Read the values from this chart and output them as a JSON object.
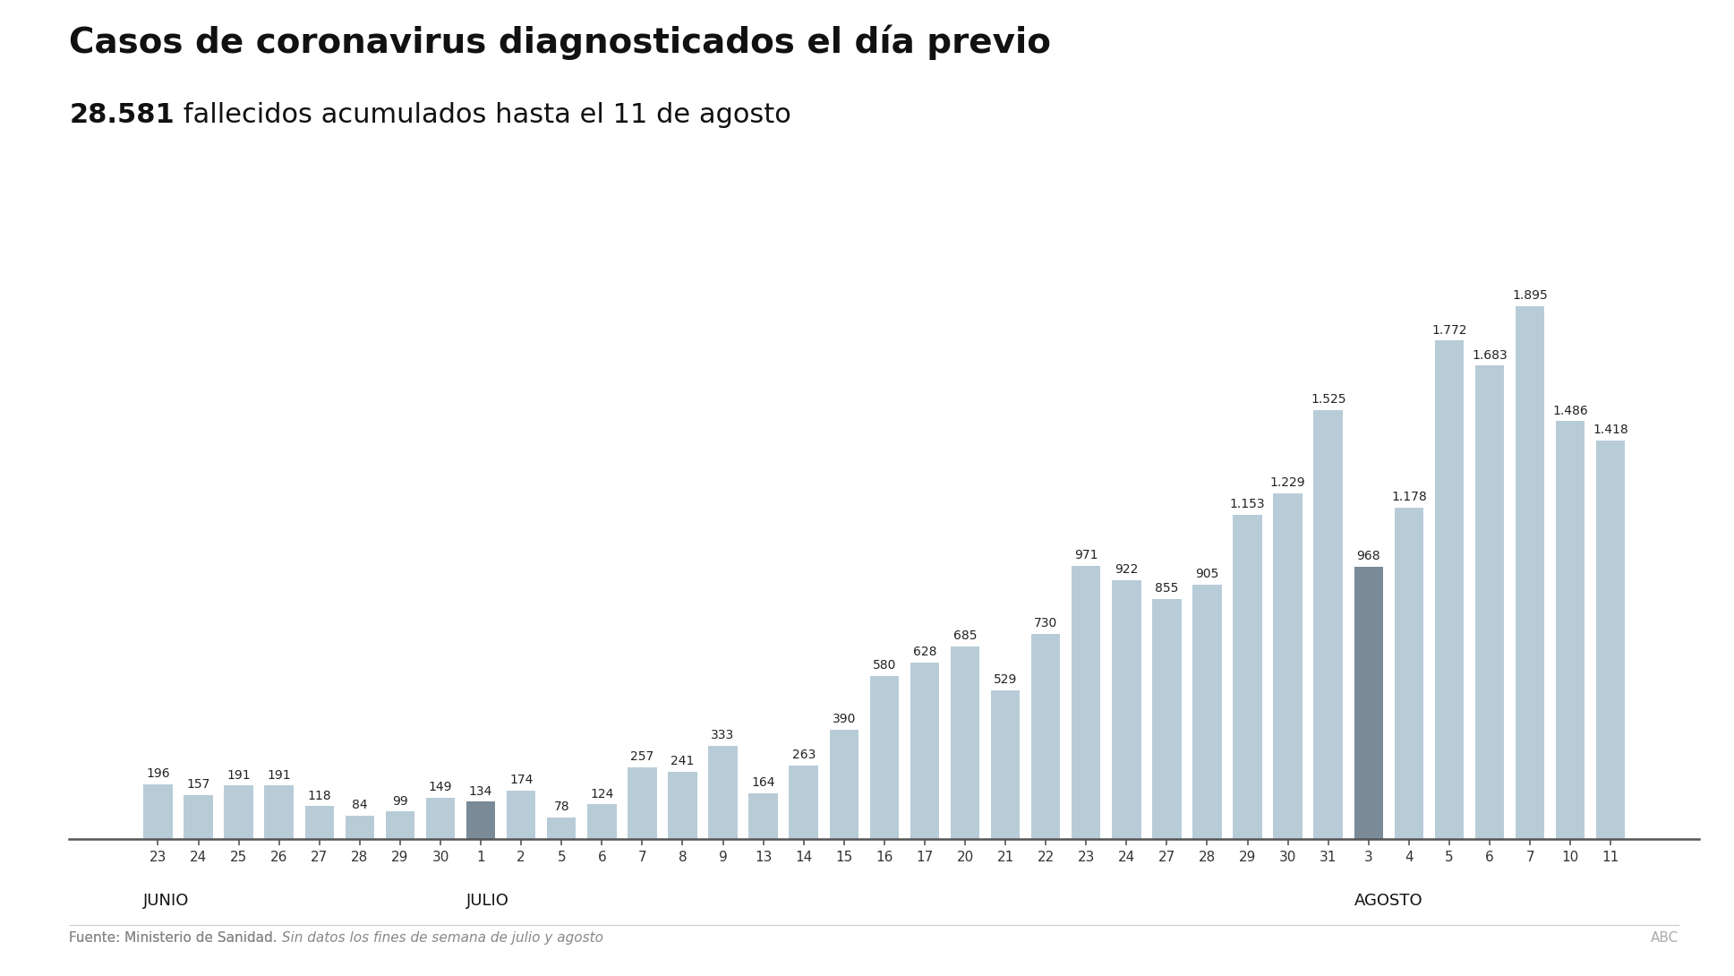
{
  "title_line1": "Casos de coronavirus diagnosticados el día previo",
  "title_line2_bold": "28.581",
  "title_line2_rest": " fallecidos acumulados hasta el 11 de agosto",
  "categories": [
    "23",
    "24",
    "25",
    "26",
    "27",
    "28",
    "29",
    "30",
    "1",
    "2",
    "5",
    "6",
    "7",
    "8",
    "9",
    "13",
    "14",
    "15",
    "16",
    "17",
    "20",
    "21",
    "22",
    "23",
    "24",
    "27",
    "28",
    "29",
    "30",
    "31",
    "3",
    "4",
    "5",
    "6",
    "7",
    "10",
    "11"
  ],
  "month_labels": [
    {
      "label": "JUNIO",
      "index": 0
    },
    {
      "label": "JULIO",
      "index": 8
    },
    {
      "label": "AGOSTO",
      "index": 30
    }
  ],
  "values": [
    196,
    157,
    191,
    191,
    118,
    84,
    99,
    149,
    134,
    174,
    78,
    124,
    257,
    241,
    333,
    164,
    263,
    390,
    580,
    628,
    685,
    529,
    730,
    971,
    922,
    855,
    905,
    1153,
    1229,
    1525,
    968,
    1178,
    1772,
    1683,
    1895,
    1486,
    1418
  ],
  "bar_colors": [
    "#b8ccd8",
    "#b8ccd8",
    "#b8ccd8",
    "#b8ccd8",
    "#b8ccd8",
    "#b8ccd8",
    "#b8ccd8",
    "#b8ccd8",
    "#7a8a96",
    "#b8ccd8",
    "#b8ccd8",
    "#b8ccd8",
    "#b8ccd8",
    "#b8ccd8",
    "#b8ccd8",
    "#b8ccd8",
    "#b8ccd8",
    "#b8ccd8",
    "#b8ccd8",
    "#b8ccd8",
    "#b8ccd8",
    "#b8ccd8",
    "#b8ccd8",
    "#b8ccd8",
    "#b8ccd8",
    "#b8ccd8",
    "#b8ccd8",
    "#b8ccd8",
    "#b8ccd8",
    "#b8ccd8",
    "#7a8a96",
    "#b8ccd8",
    "#b8ccd8",
    "#b8ccd8",
    "#b8ccd8",
    "#b8ccd8",
    "#b8ccd8"
  ],
  "label_values": [
    "196",
    "157",
    "191",
    "191",
    "118",
    "84",
    "99",
    "149",
    "134",
    "174",
    "78",
    "124",
    "257",
    "241",
    "333",
    "164",
    "263",
    "390",
    "580",
    "628",
    "685",
    "529",
    "730",
    "971",
    "922",
    "855",
    "905",
    "1.153",
    "1.229",
    "1.525",
    "968",
    "1.178",
    "1.772",
    "1.683",
    "1.895",
    "1.486",
    "1.418"
  ],
  "bg_color": "#ffffff",
  "footer_source": "Fuente: Ministerio de Sanidad.",
  "footer_italic": " Sin datos los fines de semana de julio y agosto",
  "footer_right": "ABC",
  "ylim_max": 2150,
  "title_fontsize": 28,
  "subtitle_fontsize": 22,
  "label_fontsize": 10,
  "tick_fontsize": 11,
  "month_fontsize": 13,
  "footer_fontsize": 11
}
